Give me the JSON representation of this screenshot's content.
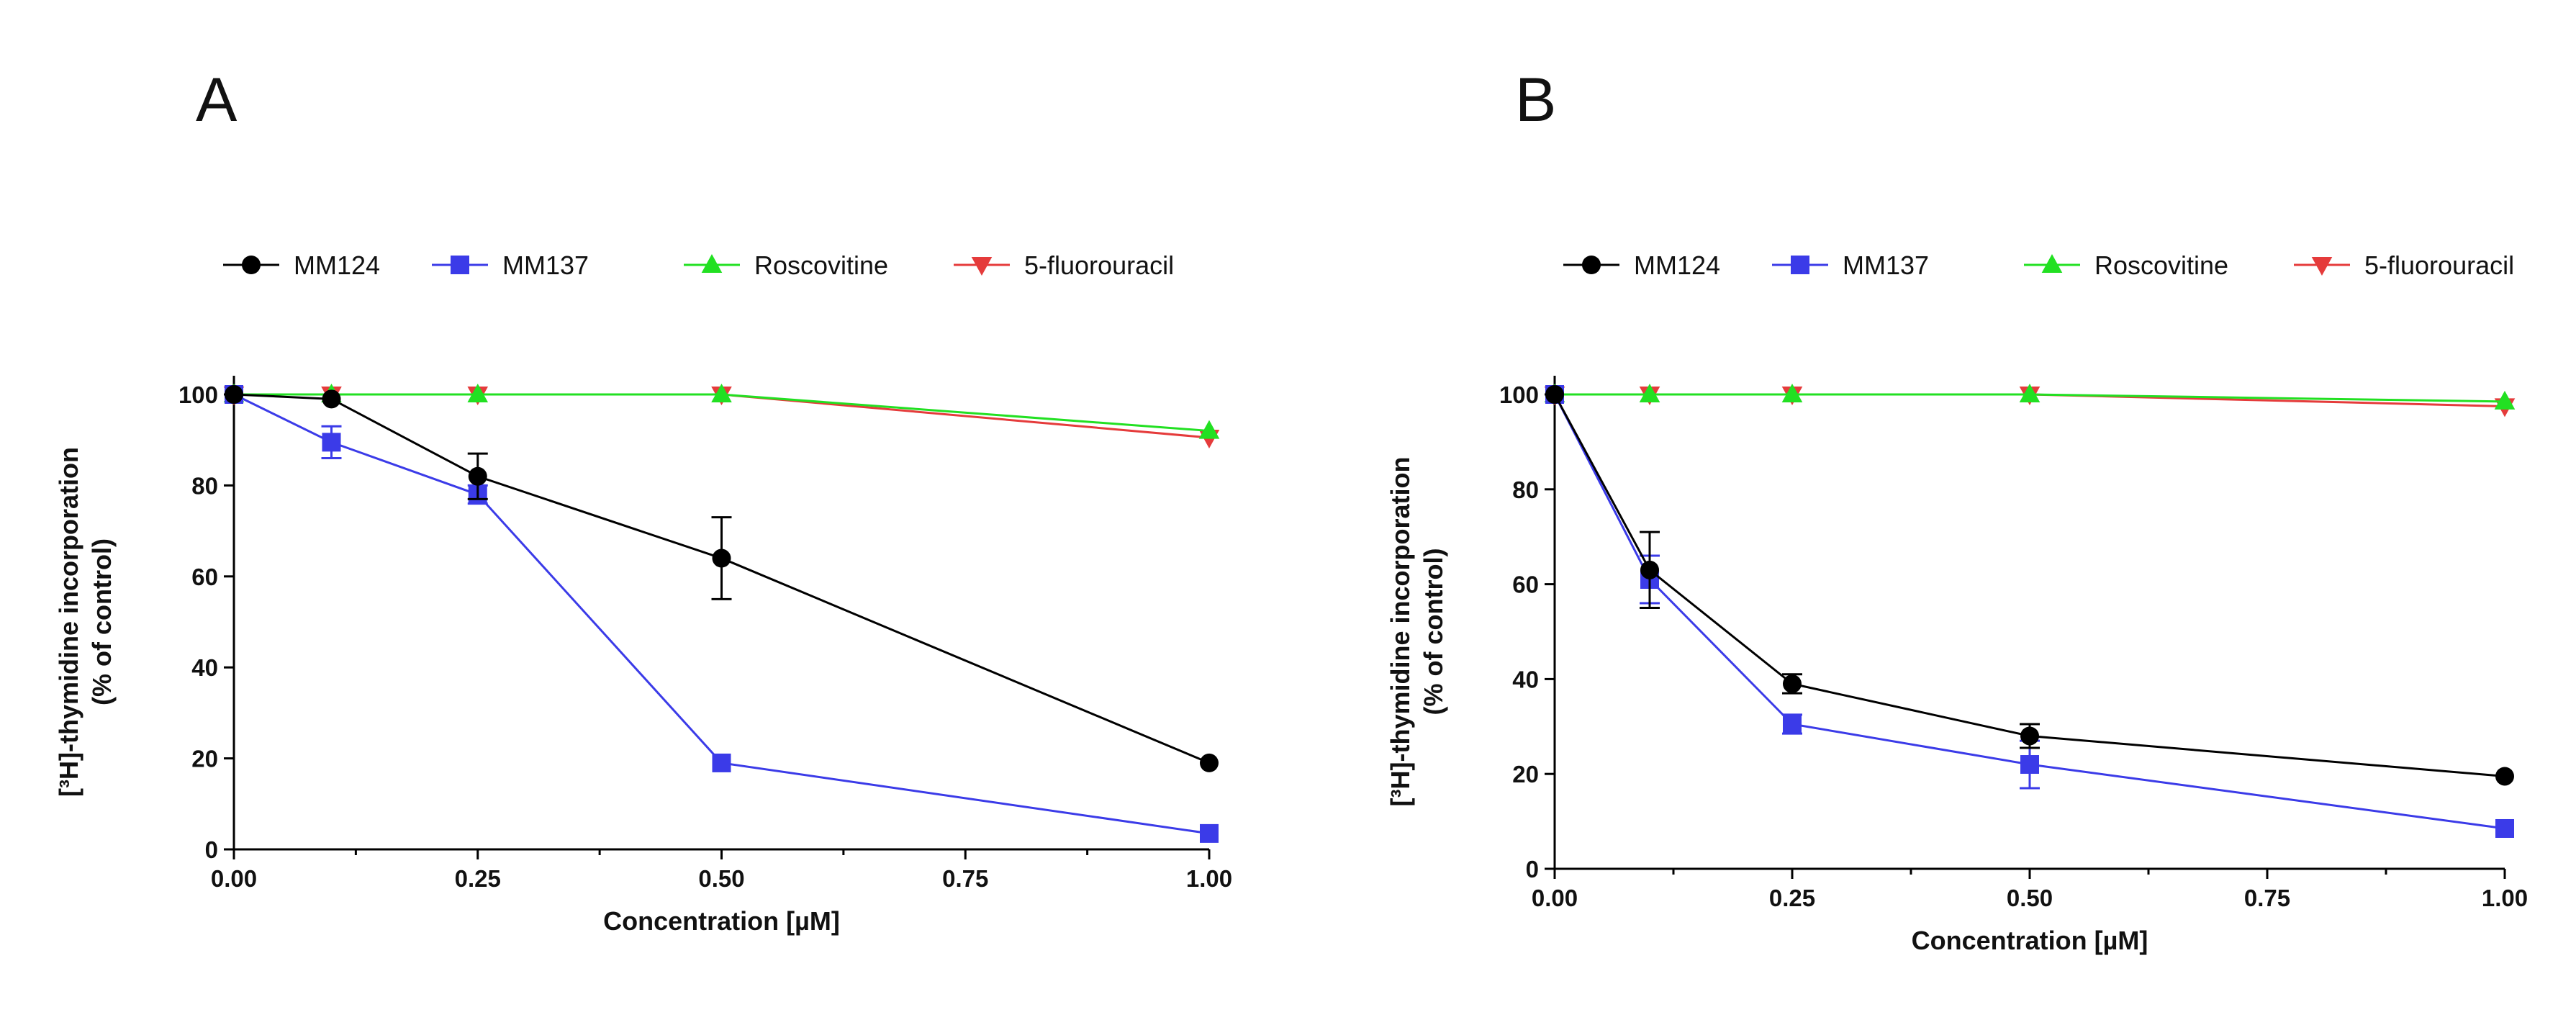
{
  "figure": {
    "panels": [
      "A",
      "B"
    ]
  },
  "legend": {
    "items": [
      {
        "name": "MM124",
        "color": "#000000",
        "marker": "circle"
      },
      {
        "name": "MM137",
        "color": "#3b3be8",
        "marker": "square"
      },
      {
        "name": "Roscovitine",
        "color": "#22e022",
        "marker": "triangle-up"
      },
      {
        "name": "5-fluorouracil",
        "color": "#e53b3b",
        "marker": "triangle-down"
      }
    ]
  },
  "chart_data": [
    {
      "panel": "A",
      "type": "line",
      "title": "",
      "xlabel": "Concentration [µM]",
      "ylabel_line1": "[³H]-thymidine incorporation",
      "ylabel_line2": "(% of control)",
      "xlim": [
        0,
        1
      ],
      "ylim": [
        0,
        100
      ],
      "xticks": [
        "0.00",
        "0.25",
        "0.50",
        "0.75",
        "1.00"
      ],
      "yticks": [
        "0",
        "20",
        "40",
        "60",
        "80",
        "100"
      ],
      "grid": false,
      "x": [
        0,
        0.1,
        0.25,
        0.5,
        1.0
      ],
      "series": [
        {
          "name": "MM124",
          "values": [
            100,
            99,
            82,
            64,
            19
          ],
          "errors": [
            0,
            0,
            5,
            9,
            0
          ]
        },
        {
          "name": "MM137",
          "values": [
            100,
            89.5,
            78,
            19,
            3.5
          ],
          "errors": [
            0,
            3.5,
            2,
            0,
            0
          ]
        },
        {
          "name": "Roscovitine",
          "values": [
            100,
            100,
            100,
            100,
            92
          ],
          "errors": [
            0,
            0,
            0,
            0,
            0
          ]
        },
        {
          "name": "5-fluorouracil",
          "values": [
            100,
            100,
            100,
            100,
            90.5
          ],
          "errors": [
            0,
            0,
            0,
            0,
            0
          ]
        }
      ]
    },
    {
      "panel": "B",
      "type": "line",
      "title": "",
      "xlabel": "Concentration [µM]",
      "ylabel_line1": "[³H]-thymidine incorporation",
      "ylabel_line2": "(% of control)",
      "xlim": [
        0,
        1
      ],
      "ylim": [
        0,
        100
      ],
      "xticks": [
        "0.00",
        "0.25",
        "0.50",
        "0.75",
        "1.00"
      ],
      "yticks": [
        "0",
        "20",
        "40",
        "60",
        "80",
        "100"
      ],
      "grid": false,
      "x": [
        0,
        0.1,
        0.25,
        0.5,
        1.0
      ],
      "series": [
        {
          "name": "MM124",
          "values": [
            100,
            63,
            39,
            28,
            19.5
          ],
          "errors": [
            0,
            8,
            2,
            2.5,
            0
          ]
        },
        {
          "name": "MM137",
          "values": [
            100,
            61,
            30.5,
            22,
            8.5
          ],
          "errors": [
            0,
            5,
            2,
            5,
            0
          ]
        },
        {
          "name": "Roscovitine",
          "values": [
            100,
            100,
            100,
            100,
            98.5
          ],
          "errors": [
            0,
            0,
            0,
            0,
            0
          ]
        },
        {
          "name": "5-fluorouracil",
          "values": [
            100,
            100,
            100,
            100,
            97.5
          ],
          "errors": [
            0,
            0,
            0,
            0,
            0
          ]
        }
      ]
    }
  ]
}
